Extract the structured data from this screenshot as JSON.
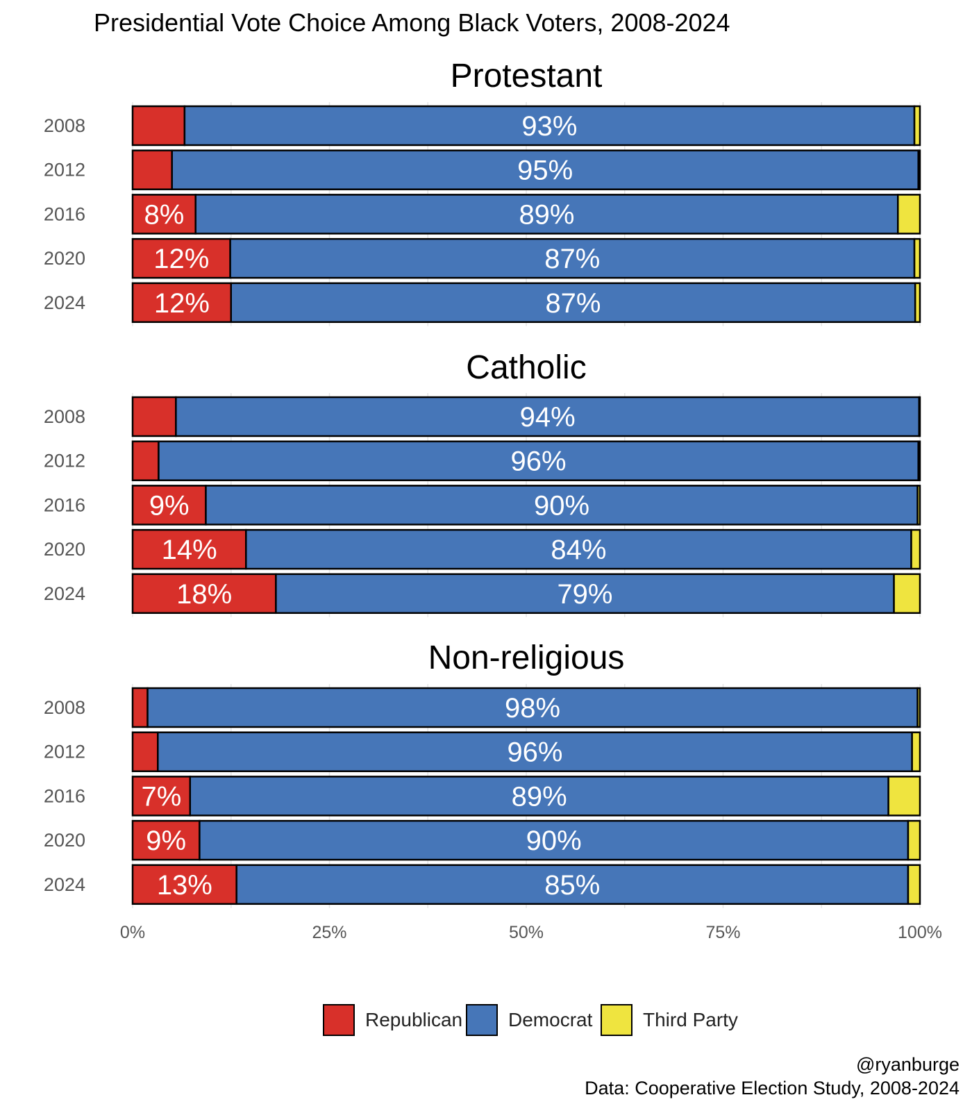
{
  "colors": {
    "Republican": "#d8302a",
    "Democrat": "#4676b8",
    "Third Party": "#efe43f"
  },
  "chart_data": {
    "type": "bar",
    "orientation": "horizontal",
    "stacked": true,
    "title": "Presidential Vote Choice Among Black Voters, 2008-2024",
    "categories": [
      "2008",
      "2012",
      "2016",
      "2020",
      "2024"
    ],
    "xlim": [
      0,
      100
    ],
    "xticks": [
      "0%",
      "25%",
      "50%",
      "75%",
      "100%"
    ],
    "legend": {
      "position": "bottom",
      "entries": [
        "Republican",
        "Democrat",
        "Third Party"
      ]
    },
    "facets": [
      {
        "title": "Protestant",
        "series": [
          {
            "name": "Republican",
            "values": [
              6.6,
              5.0,
              8.0,
              12.4,
              12.5
            ]
          },
          {
            "name": "Democrat",
            "values": [
              92.7,
              94.8,
              89.2,
              86.9,
              86.9
            ]
          },
          {
            "name": "Third Party",
            "values": [
              0.7,
              0.2,
              2.8,
              0.7,
              0.6
            ]
          }
        ],
        "labels": {
          "Republican": [
            "",
            "",
            "8%",
            "12%",
            "12%"
          ],
          "Democrat": [
            "93%",
            "95%",
            "89%",
            "87%",
            "87%"
          ]
        }
      },
      {
        "title": "Catholic",
        "series": [
          {
            "name": "Republican",
            "values": [
              5.5,
              3.3,
              9.3,
              14.4,
              18.2
            ]
          },
          {
            "name": "Democrat",
            "values": [
              94.4,
              96.5,
              90.4,
              84.5,
              78.5
            ]
          },
          {
            "name": "Third Party",
            "values": [
              0.1,
              0.2,
              0.3,
              1.1,
              3.3
            ]
          }
        ],
        "labels": {
          "Republican": [
            "",
            "",
            "9%",
            "14%",
            "18%"
          ],
          "Democrat": [
            "94%",
            "96%",
            "90%",
            "84%",
            "79%"
          ]
        }
      },
      {
        "title": "Non-religious",
        "series": [
          {
            "name": "Republican",
            "values": [
              1.9,
              3.2,
              7.3,
              8.5,
              13.2
            ]
          },
          {
            "name": "Democrat",
            "values": [
              97.8,
              95.8,
              88.7,
              90.0,
              85.3
            ]
          },
          {
            "name": "Third Party",
            "values": [
              0.3,
              1.0,
              4.0,
              1.5,
              1.5
            ]
          }
        ],
        "labels": {
          "Republican": [
            "",
            "",
            "7%",
            "9%",
            "13%"
          ],
          "Democrat": [
            "98%",
            "96%",
            "89%",
            "90%",
            "85%"
          ]
        }
      }
    ],
    "caption": [
      "@ryanburge",
      "Data: Cooperative Election Study, 2008-2024"
    ]
  }
}
